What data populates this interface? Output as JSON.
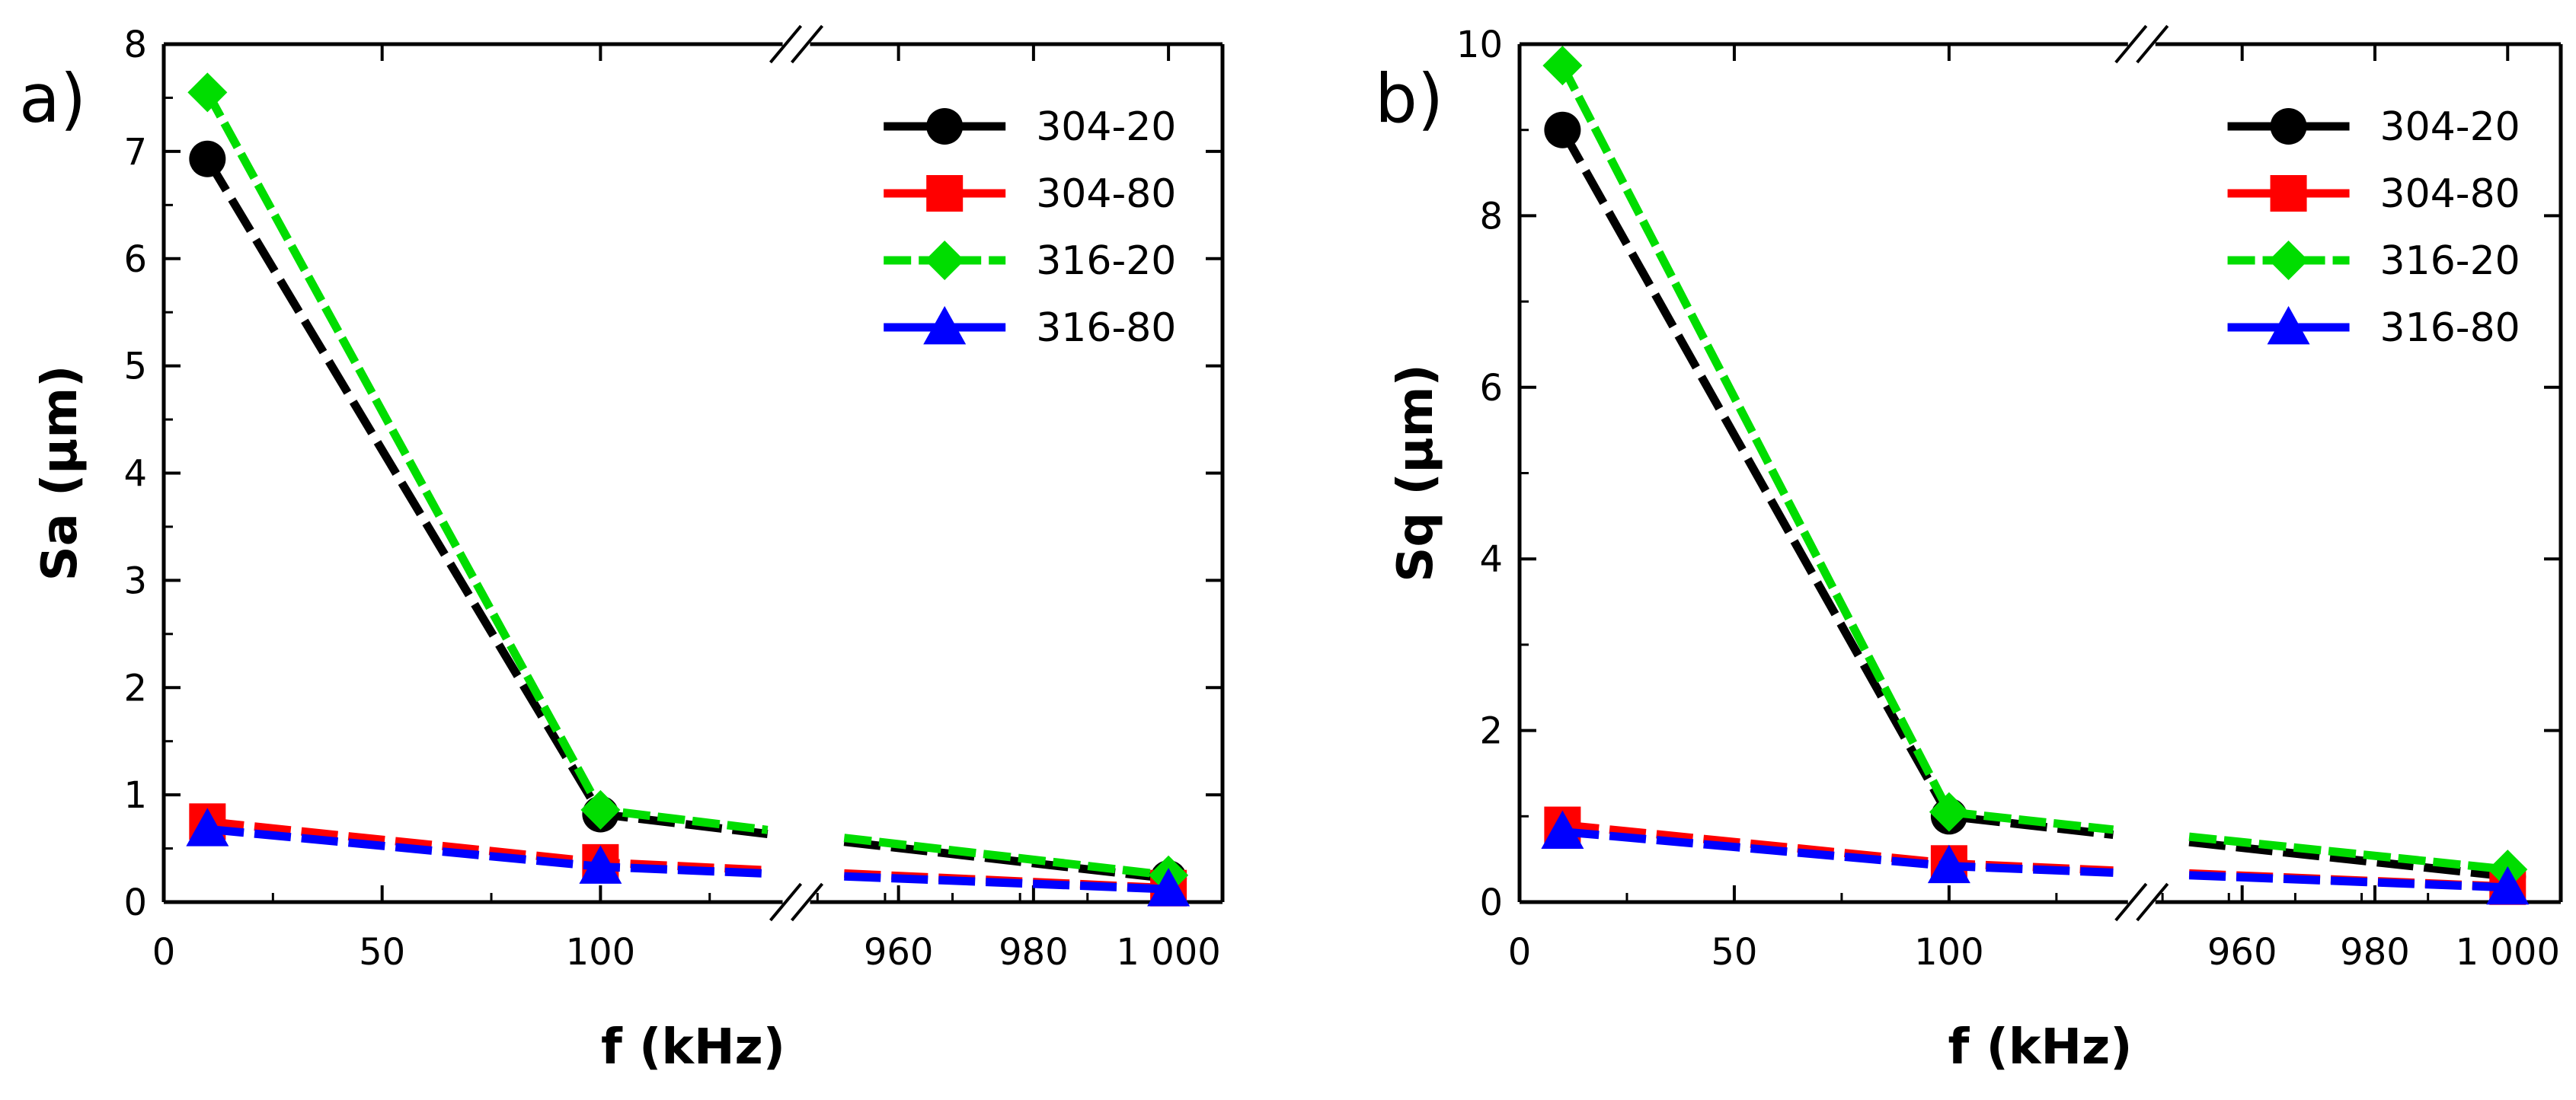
{
  "chart_data": [
    {
      "type": "line",
      "panel_label": "a)",
      "xlabel": "f (kHz)",
      "ylabel": "Sa (µm)",
      "x_axis_break": true,
      "x_segments": [
        {
          "range": [
            0,
            140
          ],
          "ticks": [
            0,
            50,
            100
          ],
          "tick_labels": [
            "0",
            "50",
            "100"
          ]
        },
        {
          "range": [
            948,
            1008
          ],
          "ticks": [
            960,
            980,
            1000
          ],
          "tick_labels": [
            "960",
            "980",
            "1 000"
          ]
        }
      ],
      "ylim": [
        0,
        8
      ],
      "yticks": [
        0,
        1,
        2,
        3,
        4,
        5,
        6,
        7,
        8
      ],
      "ytick_labels": [
        "0",
        "1",
        "2",
        "3",
        "4",
        "5",
        "6",
        "7",
        "8"
      ],
      "legend_position": "top-right",
      "x": [
        10,
        100,
        1000
      ],
      "series": [
        {
          "name": "304-20",
          "color": "#000000",
          "marker": "circle",
          "values": [
            6.93,
            0.82,
            0.22
          ]
        },
        {
          "name": "304-80",
          "color": "#ff0000",
          "marker": "square",
          "values": [
            0.75,
            0.37,
            0.13
          ]
        },
        {
          "name": "316-20",
          "color": "#00dd00",
          "marker": "diamond",
          "values": [
            7.55,
            0.86,
            0.25
          ]
        },
        {
          "name": "316-80",
          "color": "#0000ff",
          "marker": "triangle",
          "values": [
            0.68,
            0.33,
            0.12
          ]
        }
      ]
    },
    {
      "type": "line",
      "panel_label": "b)",
      "xlabel": "f (kHz)",
      "ylabel": "Sq (µm)",
      "x_axis_break": true,
      "x_segments": [
        {
          "range": [
            0,
            140
          ],
          "ticks": [
            0,
            50,
            100
          ],
          "tick_labels": [
            "0",
            "50",
            "100"
          ]
        },
        {
          "range": [
            948,
            1008
          ],
          "ticks": [
            960,
            980,
            1000
          ],
          "tick_labels": [
            "960",
            "980",
            "1 000"
          ]
        }
      ],
      "ylim": [
        0,
        10
      ],
      "yticks": [
        0,
        2,
        4,
        6,
        8,
        10
      ],
      "ytick_labels": [
        "0",
        "2",
        "4",
        "6",
        "8",
        "10"
      ],
      "legend_position": "top-right",
      "x": [
        10,
        100,
        1000
      ],
      "series": [
        {
          "name": "304-20",
          "color": "#000000",
          "marker": "circle",
          "values": [
            9.0,
            1.0,
            0.3
          ]
        },
        {
          "name": "304-80",
          "color": "#ff0000",
          "marker": "square",
          "values": [
            0.9,
            0.45,
            0.18
          ]
        },
        {
          "name": "316-20",
          "color": "#00dd00",
          "marker": "diamond",
          "values": [
            9.75,
            1.05,
            0.38
          ]
        },
        {
          "name": "316-80",
          "color": "#0000ff",
          "marker": "triangle",
          "values": [
            0.82,
            0.42,
            0.17
          ]
        }
      ]
    }
  ]
}
